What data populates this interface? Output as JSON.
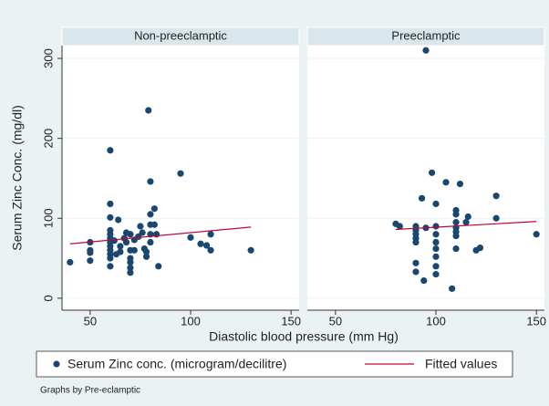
{
  "chart_data": {
    "type": "scatter",
    "ylabel": "Serum Zinc Conc. (mg/dl)",
    "xlabel": "Diastolic blood pressure (mm Hg)",
    "note": "Graphs by Pre-eclamptic",
    "xlim": [
      36,
      154
    ],
    "ylim": [
      -15,
      316
    ],
    "xticks": [
      50,
      100,
      150
    ],
    "yticks": [
      0,
      100,
      200,
      300
    ],
    "grid": true,
    "legend": [
      {
        "name": "Serum Zinc conc. (microgram/decilitre)",
        "color": "#1a476f"
      },
      {
        "name": "Fitted values",
        "color": "#c10534"
      }
    ],
    "panels": [
      {
        "title": "Non-preeclamptic",
        "x": [
          40,
          50,
          50,
          50,
          50,
          60,
          60,
          60,
          60,
          60,
          60,
          60,
          60,
          60,
          60,
          60,
          60,
          62,
          63,
          64,
          65,
          65,
          67,
          68,
          68,
          70,
          70,
          70,
          70,
          70,
          70,
          72,
          72,
          74,
          75,
          76,
          77,
          78,
          78,
          79,
          80,
          80,
          80,
          80,
          80,
          82,
          82,
          83,
          84,
          95,
          100,
          105,
          108,
          110,
          110,
          130
        ],
        "values": [
          45,
          70,
          60,
          57,
          47,
          185,
          118,
          101,
          85,
          80,
          75,
          70,
          65,
          60,
          55,
          50,
          40,
          72,
          55,
          98,
          65,
          58,
          75,
          82,
          70,
          80,
          60,
          50,
          45,
          38,
          32,
          73,
          60,
          77,
          90,
          82,
          62,
          58,
          52,
          235,
          146,
          105,
          92,
          80,
          70,
          112,
          92,
          80,
          40,
          156,
          76,
          68,
          66,
          60,
          80,
          60
        ],
        "fit_x": [
          40,
          130
        ],
        "fit_values": [
          68,
          89
        ]
      },
      {
        "title": "Preeclamptic",
        "x": [
          80,
          82,
          90,
          90,
          90,
          90,
          90,
          90,
          90,
          93,
          94,
          95,
          95,
          98,
          100,
          100,
          100,
          100,
          100,
          100,
          100,
          100,
          105,
          108,
          110,
          110,
          110,
          110,
          110,
          110,
          110,
          112,
          115,
          116,
          120,
          122,
          130,
          130,
          150
        ],
        "values": [
          93,
          90,
          90,
          85,
          80,
          75,
          70,
          44,
          33,
          125,
          22,
          310,
          88,
          157,
          118,
          90,
          80,
          70,
          62,
          52,
          40,
          30,
          145,
          12,
          110,
          105,
          95,
          88,
          83,
          78,
          62,
          143,
          95,
          102,
          60,
          63,
          128,
          100,
          80
        ],
        "fit_x": [
          80,
          150
        ],
        "fit_values": [
          86,
          96
        ]
      }
    ]
  }
}
